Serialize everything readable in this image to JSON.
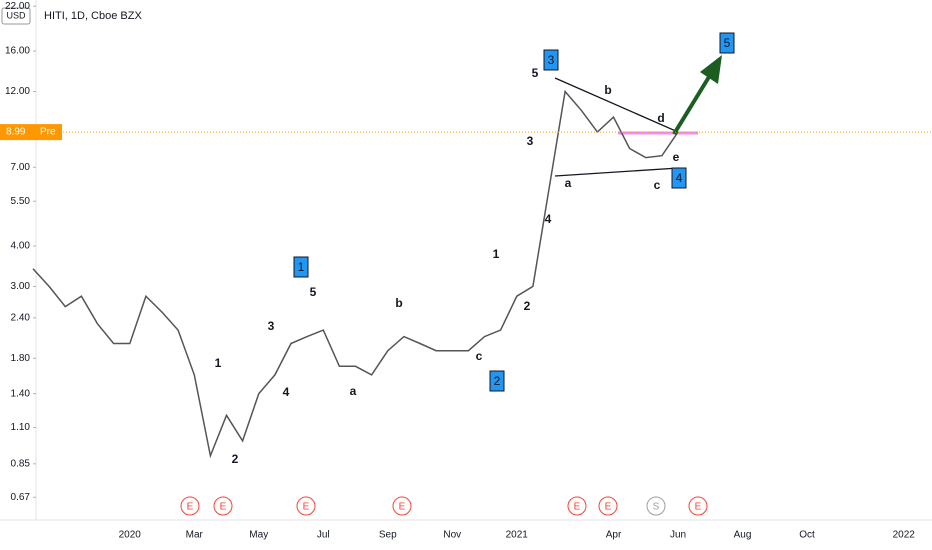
{
  "chart_data": {
    "type": "line",
    "title": "HITI, 1D, Cboe BZX",
    "currency": "USD",
    "color": "#555555",
    "log_scale": true,
    "categories": [
      null,
      null,
      null,
      null,
      null,
      null,
      "2020",
      null,
      null,
      null,
      "Mar",
      null,
      null,
      null,
      "May",
      null,
      null,
      null,
      "Jul",
      null,
      null,
      null,
      "Sep",
      null,
      null,
      null,
      "Nov",
      null,
      null,
      null,
      "2021",
      null,
      null,
      null,
      null,
      null,
      "Apr",
      null,
      null,
      null,
      "Jun",
      null,
      null,
      null,
      "Aug",
      null,
      null,
      null,
      "Oct",
      null,
      null,
      null,
      null,
      null,
      "2022"
    ],
    "values": [
      3.4,
      3.0,
      2.6,
      2.8,
      2.3,
      2.0,
      2.0,
      2.8,
      2.5,
      2.2,
      1.6,
      0.9,
      1.2,
      1.0,
      1.4,
      1.6,
      2.0,
      2.1,
      2.2,
      1.7,
      1.7,
      1.6,
      1.9,
      2.1,
      2.0,
      1.9,
      1.9,
      1.9,
      2.1,
      2.2,
      2.8,
      3.0,
      6.0,
      12.0,
      10.5,
      9.0,
      10.0,
      8.0,
      7.5,
      7.6,
      8.99,
      null,
      null,
      null,
      null,
      null,
      null,
      null,
      null,
      null,
      null,
      null,
      null,
      null,
      null
    ],
    "ylim": [
      0.57,
      23
    ],
    "yticks": [
      {
        "value": 22,
        "label": "22.00"
      },
      {
        "value": 16,
        "label": "16.00"
      },
      {
        "value": 12,
        "label": "12.00"
      },
      {
        "value": 7,
        "label": "7.00"
      },
      {
        "value": 5.5,
        "label": "5.50"
      },
      {
        "value": 4,
        "label": "4.00"
      },
      {
        "value": 3,
        "label": "3.00"
      },
      {
        "value": 2.4,
        "label": "2.40"
      },
      {
        "value": 1.8,
        "label": "1.80"
      },
      {
        "value": 1.4,
        "label": "1.40"
      },
      {
        "value": 1.1,
        "label": "1.10"
      },
      {
        "value": 0.85,
        "label": "0.85"
      },
      {
        "value": 0.67,
        "label": "0.67"
      }
    ],
    "last_price": 8.99,
    "session": "Pre",
    "annotations": [
      "5",
      "3",
      "4",
      "1",
      "2",
      "c",
      "b",
      "a",
      "5",
      "3",
      "4",
      "1",
      "2",
      "b",
      "d",
      "e",
      "a",
      "c"
    ],
    "wave_boxes": [
      "1",
      "2",
      "3",
      "4",
      "5"
    ],
    "events": [
      "E",
      "E",
      "E",
      "E",
      "E",
      "E",
      "S",
      "E"
    ]
  }
}
